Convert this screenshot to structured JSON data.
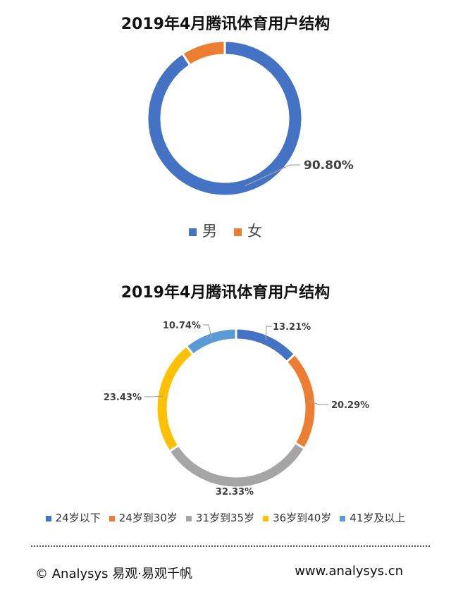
{
  "chart_data": [
    {
      "type": "pie",
      "title": "2019年4月腾讯体育用户结构",
      "categories": [
        "男",
        "女"
      ],
      "values": [
        90.8,
        9.2
      ],
      "data_labels": [
        "90.80%"
      ],
      "colors": [
        "#4472C4",
        "#ED7D31"
      ],
      "legend_position": "bottom"
    },
    {
      "type": "pie",
      "title": "2019年4月腾讯体育用户结构",
      "categories": [
        "24岁以下",
        "24岁到30岁",
        "31岁到35岁",
        "36岁到40岁",
        "41岁及以上"
      ],
      "values": [
        13.21,
        20.29,
        32.33,
        23.43,
        10.74
      ],
      "data_labels": [
        "13.21%",
        "20.29%",
        "32.33%",
        "23.43%",
        "10.74%"
      ],
      "colors": [
        "#4472C4",
        "#ED7D31",
        "#A5A5A5",
        "#FFC000",
        "#5B9BD5"
      ],
      "legend_position": "bottom"
    }
  ],
  "footer": {
    "left": "© Analysys 易观·易观千帆",
    "right": "www.analysys.cn"
  }
}
